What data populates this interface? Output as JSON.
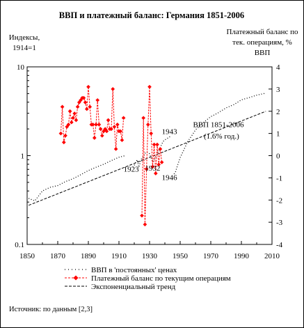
{
  "chart_data": {
    "type": "line",
    "title": "ВВП и платежный баланс: Германия 1851-2006",
    "left_axis": {
      "label_lines": [
        "Индексы,",
        "1914=1"
      ],
      "scale": "log",
      "ylim": [
        0.1,
        10
      ],
      "ticks": [
        0.1,
        1,
        10
      ],
      "tick_labels": [
        "0.1",
        "1",
        "10"
      ]
    },
    "right_axis": {
      "label_lines": [
        "Платежный баланс по",
        "тек. операциям, %",
        "ВВП"
      ],
      "ylim": [
        -4,
        4
      ],
      "ticks": [
        -4,
        -3,
        -2,
        -1,
        0,
        1,
        2,
        3,
        4
      ],
      "tick_labels": [
        "-4",
        "-3",
        "-2",
        "-1",
        "0",
        "1",
        "2",
        "3",
        "4"
      ]
    },
    "x_axis": {
      "xlim": [
        1850,
        2010
      ],
      "ticks": [
        1850,
        1870,
        1890,
        1910,
        1930,
        1950,
        1970,
        1990,
        2010
      ],
      "tick_labels": [
        "1850",
        "1870",
        "1890",
        "1910",
        "1930",
        "1950",
        "1970",
        "1990",
        "2010"
      ]
    },
    "grid": false,
    "legend_position": "bottom",
    "series": [
      {
        "name": "ВВП в 'постоянных' ценах",
        "style": "dotted",
        "color": "#000000",
        "axis": "left",
        "segments": [
          {
            "x": [
              1851,
              1855,
              1860,
              1865,
              1870,
              1875,
              1880,
              1885,
              1890,
              1895,
              1900,
              1905,
              1910,
              1914
            ],
            "y": [
              0.33,
              0.31,
              0.4,
              0.44,
              0.46,
              0.51,
              0.55,
              0.61,
              0.68,
              0.74,
              0.8,
              0.88,
              0.96,
              1.0
            ]
          },
          {
            "x": [
              1919,
              1920,
              1921,
              1922,
              1923,
              1924,
              1925,
              1926,
              1927,
              1928,
              1929,
              1930,
              1931,
              1932,
              1933,
              1934,
              1935,
              1936,
              1937,
              1938,
              1939,
              1940,
              1941,
              1942,
              1943,
              1944
            ],
            "y": [
              0.74,
              0.78,
              0.85,
              0.9,
              0.74,
              0.85,
              0.95,
              0.96,
              1.06,
              1.1,
              1.08,
              1.05,
              0.94,
              0.85,
              0.89,
              0.97,
              1.05,
              1.14,
              1.24,
              1.35,
              1.45,
              1.5,
              1.55,
              1.58,
              1.62,
              1.7
            ]
          },
          {
            "x": [
              1946,
              1947,
              1948,
              1950,
              1952,
              1955,
              1958,
              1960,
              1965,
              1970,
              1975,
              1980,
              1985,
              1990,
              1995,
              2000,
              2006
            ],
            "y": [
              0.62,
              0.66,
              0.75,
              0.95,
              1.12,
              1.45,
              1.72,
              1.95,
              2.35,
              2.75,
              3.05,
              3.45,
              3.75,
              4.25,
              4.5,
              4.8,
              5.05
            ]
          }
        ]
      },
      {
        "name": "Платежный баланс по текущим операциям",
        "style": "dashed-markers",
        "color": "#ff0000",
        "axis": "right",
        "segments": [
          {
            "x": [
              1872,
              1873,
              1874,
              1875,
              1876,
              1877,
              1878,
              1879,
              1880,
              1881,
              1882,
              1883,
              1884,
              1885,
              1886,
              1887,
              1888,
              1889,
              1890,
              1891,
              1892,
              1893,
              1894,
              1895,
              1896,
              1897,
              1898,
              1899,
              1900,
              1901,
              1902,
              1903,
              1904,
              1905,
              1906,
              1907,
              1908,
              1909,
              1910,
              1911,
              1912,
              1913
            ],
            "y": [
              1.0,
              2.2,
              0.6,
              0.9,
              1.3,
              1.4,
              2.0,
              1.5,
              1.7,
              1.9,
              1.6,
              2.2,
              2.4,
              2.5,
              2.6,
              2.6,
              2.4,
              2.1,
              3.1,
              2.2,
              1.4,
              1.4,
              0.8,
              1.4,
              2.5,
              1.4,
              1.2,
              0.9,
              1.1,
              1.2,
              1.1,
              1.6,
              1.2,
              1.2,
              3.0,
              1.3,
              0.3,
              1.4,
              1.1,
              1.1,
              0.7,
              1.7
            ]
          },
          {
            "x": [
              1925,
              1926,
              1927,
              1928,
              1929,
              1930,
              1931,
              1932,
              1933,
              1934,
              1935,
              1936,
              1937,
              1938
            ],
            "y": [
              -2.7,
              1.7,
              -3.1,
              -0.6,
              1.4,
              3.1,
              1.0,
              -0.5,
              0.5,
              -0.8,
              0.5,
              -0.4,
              0.3,
              -0.3
            ]
          }
        ]
      },
      {
        "name": "Экспоненциальный тренд",
        "style": "dashed",
        "color": "#000000",
        "axis": "left",
        "x": [
          1851,
          2006
        ],
        "y": [
          0.276,
          3.16
        ]
      }
    ],
    "annotations": [
      {
        "text": "1943",
        "x": 1943,
        "y_left": 1.75
      },
      {
        "text": "1923",
        "x": 1918,
        "y_left": 0.66
      },
      {
        "text": "1932",
        "x": 1932,
        "y_left": 0.68
      },
      {
        "text": "1946",
        "x": 1943,
        "y_left": 0.53
      },
      {
        "text": "ВВП 1851-2006",
        "x": 1975,
        "y_left": 2.1
      },
      {
        "text": "(1.6% год.)",
        "x": 1977,
        "y_left": 1.55
      }
    ]
  },
  "source_note": "Источник: по данным [2,3]"
}
